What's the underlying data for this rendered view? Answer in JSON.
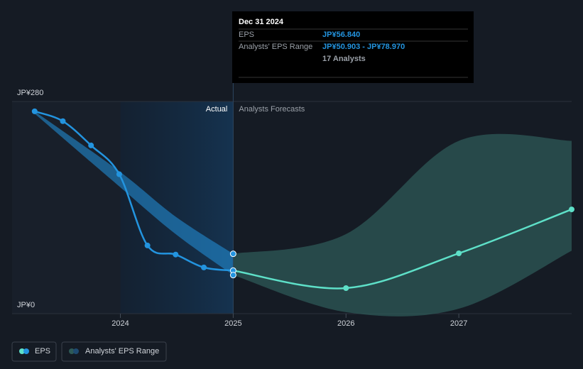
{
  "chart_data": {
    "type": "line",
    "xlim": [
      2023.04,
      2028
    ],
    "xticks": [
      2024,
      2025,
      2026,
      2027
    ],
    "ylim": [
      0,
      280
    ],
    "yticks": [
      {
        "value": 0,
        "label": "JP¥0"
      },
      {
        "value": 280,
        "label": "JP¥280"
      }
    ],
    "forecast_start": 2025,
    "actual_label": "Actual",
    "forecast_label": "Analysts Forecasts",
    "series": [
      {
        "name": "EPS",
        "color": "#2394df",
        "forecast_color": "#5ee0c8",
        "x": [
          2023.24,
          2023.49,
          2023.74,
          2023.99,
          2024.24,
          2024.49,
          2024.74,
          2025,
          2026,
          2027,
          2028
        ],
        "values": [
          267,
          254,
          222,
          184,
          90,
          78,
          61,
          56.84,
          33.7,
          79.6,
          137.6
        ]
      }
    ],
    "range": {
      "name": "Analysts' EPS Range",
      "color": "#2394df",
      "forecast_color": "#2e5a57",
      "x": [
        2023.24,
        2023.99,
        2024.49,
        2025,
        2026,
        2027,
        2028
      ],
      "low": [
        264,
        168,
        105,
        50.903,
        2,
        6.5,
        83
      ],
      "high": [
        267,
        188,
        128,
        78.97,
        105,
        228,
        228
      ]
    },
    "tooltip": {
      "date": "Dec 31 2024",
      "rows": [
        {
          "label": "EPS",
          "value": "JP¥56.840"
        },
        {
          "label": "Analysts' EPS Range",
          "value": "JP¥50.903 - JP¥78.970"
        }
      ],
      "note": "17 Analysts"
    }
  }
}
